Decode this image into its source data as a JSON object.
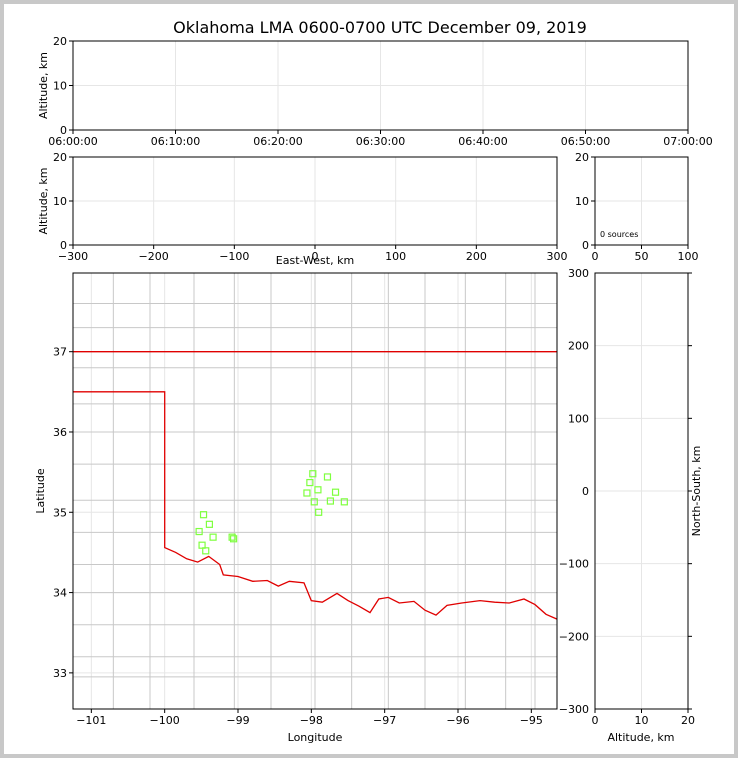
{
  "title": "Oklahoma LMA 0600-0700 UTC December 09, 2019",
  "chart_data": [
    {
      "id": "time_height",
      "type": "scatter",
      "ylabel": "Altitude, km",
      "xlim": [
        "06:00:00",
        "07:00:00"
      ],
      "ylim": [
        0,
        20
      ],
      "x_ticks": [
        "06:00:00",
        "06:10:00",
        "06:20:00",
        "06:30:00",
        "06:40:00",
        "06:50:00",
        "07:00:00"
      ],
      "y_ticks": [
        "0",
        "10",
        "20"
      ],
      "grid": true,
      "points": []
    },
    {
      "id": "ew_height",
      "type": "scatter",
      "xlabel": "East-West, km",
      "ylabel": "Altitude, km",
      "xlim": [
        -300,
        300
      ],
      "ylim": [
        0,
        20
      ],
      "x_ticks": [
        "−300",
        "−200",
        "−100",
        "0",
        "100",
        "200",
        "300"
      ],
      "y_ticks": [
        "0",
        "10",
        "20"
      ],
      "grid": true,
      "points": []
    },
    {
      "id": "histogram",
      "type": "bar",
      "xlim": [
        0,
        100
      ],
      "ylim": [
        0,
        20
      ],
      "x_ticks": [
        "0",
        "50",
        "100"
      ],
      "y_ticks": [
        "0",
        "10",
        "20"
      ],
      "annotation": "0 sources",
      "grid": true,
      "values": []
    },
    {
      "id": "plan_view",
      "type": "scatter",
      "xlabel": "Longitude",
      "ylabel": "Latitude",
      "xlim": [
        -101.25,
        -94.65
      ],
      "ylim": [
        32.55,
        37.98
      ],
      "x_ticks": [
        "−101",
        "−100",
        "−99",
        "−98",
        "−97",
        "−96",
        "−95"
      ],
      "y_ticks": [
        "33",
        "34",
        "35",
        "36",
        "37"
      ],
      "grid": true,
      "station_color": "#7fff3f",
      "boundary_color": "#e00000",
      "county_color": "#c8c8c8",
      "stations": [
        {
          "lon": -97.98,
          "lat": 35.48
        },
        {
          "lon": -98.02,
          "lat": 35.37
        },
        {
          "lon": -98.06,
          "lat": 35.24
        },
        {
          "lon": -97.91,
          "lat": 35.28
        },
        {
          "lon": -97.78,
          "lat": 35.44
        },
        {
          "lon": -97.67,
          "lat": 35.25
        },
        {
          "lon": -97.74,
          "lat": 35.14
        },
        {
          "lon": -97.55,
          "lat": 35.13
        },
        {
          "lon": -97.96,
          "lat": 35.13
        },
        {
          "lon": -97.9,
          "lat": 35.0
        },
        {
          "lon": -99.47,
          "lat": 34.97
        },
        {
          "lon": -99.39,
          "lat": 34.85
        },
        {
          "lon": -99.53,
          "lat": 34.76
        },
        {
          "lon": -99.34,
          "lat": 34.69
        },
        {
          "lon": -99.49,
          "lat": 34.59
        },
        {
          "lon": -99.44,
          "lat": 34.52
        },
        {
          "lon": -99.08,
          "lat": 34.69
        },
        {
          "lon": -99.06,
          "lat": 34.67
        }
      ]
    },
    {
      "id": "ns_height",
      "type": "scatter",
      "xlabel": "Altitude, km",
      "ylabel": "North-South, km",
      "xlim": [
        0,
        20
      ],
      "ylim": [
        -300,
        300
      ],
      "x_ticks": [
        "0",
        "10",
        "20"
      ],
      "y_ticks": [
        "−300",
        "−200",
        "−100",
        "0",
        "100",
        "200",
        "300"
      ],
      "grid": true,
      "points": []
    }
  ]
}
